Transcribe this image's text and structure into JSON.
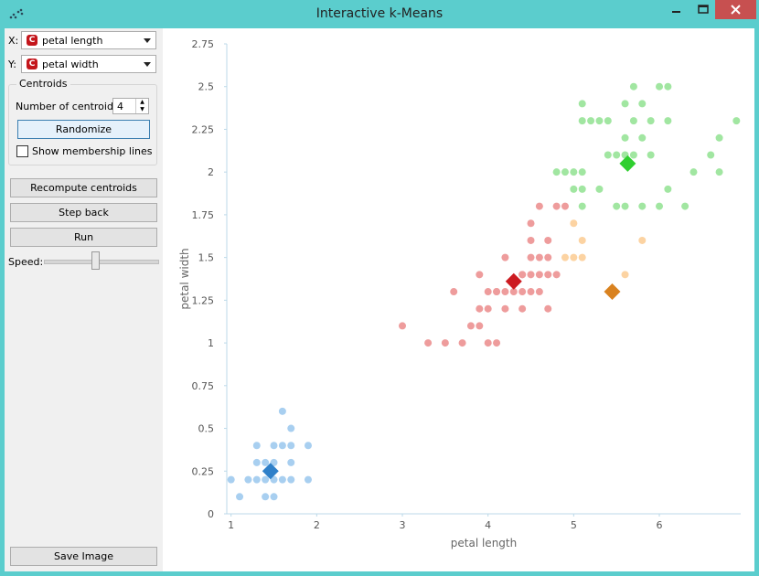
{
  "window": {
    "title": "Interactive k-Means"
  },
  "controls": {
    "x_label": "X:",
    "x_value": "petal length",
    "y_label": "Y:",
    "y_value": "petal width",
    "variable_badge": "C",
    "centroids_group_title": "Centroids",
    "num_centroids_label": "Number of centroids:",
    "num_centroids_value": "4",
    "randomize_label": "Randomize",
    "show_membership_label": "Show membership lines",
    "show_membership_checked": false,
    "recompute_label": "Recompute centroids",
    "step_back_label": "Step back",
    "run_label": "Run",
    "speed_label": "Speed:",
    "speed_fraction": 0.45,
    "save_image_label": "Save Image"
  },
  "colors": {
    "blue": "#a8cff0",
    "red": "#ee9c9c",
    "orange": "#fcd3a2",
    "green": "#a1e6a1",
    "blue_centroid": "#2f80c9",
    "red_centroid": "#cc1b21",
    "orange_centroid": "#d9821f",
    "green_centroid": "#2fcf2f",
    "close_button": "#c75050",
    "titlebar": "#5bcdcd"
  },
  "chart_data": {
    "type": "scatter",
    "xlabel": "petal length",
    "ylabel": "petal width",
    "xlim": [
      0.95,
      6.95
    ],
    "ylim": [
      0,
      2.75
    ],
    "x_ticks": [
      "1",
      "2",
      "3",
      "4",
      "5",
      "6"
    ],
    "y_ticks": [
      "0",
      "0.25",
      "0.5",
      "0.75",
      "1",
      "1.25",
      "1.5",
      "1.75",
      "2",
      "2.25",
      "2.5",
      "2.75"
    ],
    "clusters": [
      {
        "color": "blue",
        "centroid": [
          1.46,
          0.25
        ],
        "points": [
          [
            1.0,
            0.2
          ],
          [
            1.1,
            0.1
          ],
          [
            1.2,
            0.2
          ],
          [
            1.3,
            0.2
          ],
          [
            1.3,
            0.3
          ],
          [
            1.3,
            0.4
          ],
          [
            1.4,
            0.1
          ],
          [
            1.4,
            0.2
          ],
          [
            1.4,
            0.3
          ],
          [
            1.5,
            0.1
          ],
          [
            1.5,
            0.2
          ],
          [
            1.5,
            0.3
          ],
          [
            1.5,
            0.4
          ],
          [
            1.6,
            0.2
          ],
          [
            1.6,
            0.4
          ],
          [
            1.6,
            0.6
          ],
          [
            1.7,
            0.2
          ],
          [
            1.7,
            0.3
          ],
          [
            1.7,
            0.4
          ],
          [
            1.7,
            0.5
          ],
          [
            1.9,
            0.2
          ],
          [
            1.9,
            0.4
          ]
        ]
      },
      {
        "color": "red",
        "centroid": [
          4.3,
          1.36
        ],
        "points": [
          [
            3.0,
            1.1
          ],
          [
            3.3,
            1.0
          ],
          [
            3.5,
            1.0
          ],
          [
            3.6,
            1.3
          ],
          [
            3.7,
            1.0
          ],
          [
            3.8,
            1.1
          ],
          [
            3.9,
            1.1
          ],
          [
            3.9,
            1.2
          ],
          [
            3.9,
            1.4
          ],
          [
            4.0,
            1.0
          ],
          [
            4.0,
            1.2
          ],
          [
            4.0,
            1.3
          ],
          [
            4.1,
            1.0
          ],
          [
            4.1,
            1.3
          ],
          [
            4.2,
            1.2
          ],
          [
            4.2,
            1.3
          ],
          [
            4.2,
            1.5
          ],
          [
            4.3,
            1.3
          ],
          [
            4.4,
            1.2
          ],
          [
            4.4,
            1.3
          ],
          [
            4.4,
            1.4
          ],
          [
            4.5,
            1.3
          ],
          [
            4.5,
            1.5
          ],
          [
            4.5,
            1.7
          ],
          [
            4.6,
            1.3
          ],
          [
            4.6,
            1.4
          ],
          [
            4.6,
            1.5
          ],
          [
            4.7,
            1.2
          ],
          [
            4.7,
            1.4
          ],
          [
            4.7,
            1.5
          ],
          [
            4.7,
            1.6
          ],
          [
            4.8,
            1.4
          ],
          [
            4.8,
            1.8
          ],
          [
            4.9,
            1.8
          ],
          [
            4.5,
            1.6
          ],
          [
            4.6,
            1.8
          ],
          [
            4.5,
            1.4
          ],
          [
            4.4,
            1.4
          ],
          [
            4.1,
            1.3
          ]
        ]
      },
      {
        "color": "orange",
        "centroid": [
          5.45,
          1.3
        ],
        "points": [
          [
            5.0,
            1.7
          ],
          [
            4.9,
            1.5
          ],
          [
            5.0,
            1.5
          ],
          [
            5.1,
            1.5
          ],
          [
            5.1,
            1.6
          ],
          [
            5.6,
            1.4
          ],
          [
            5.8,
            1.6
          ]
        ]
      },
      {
        "color": "green",
        "centroid": [
          5.63,
          2.05
        ],
        "points": [
          [
            4.8,
            2.0
          ],
          [
            4.9,
            2.0
          ],
          [
            5.0,
            2.0
          ],
          [
            5.1,
            2.0
          ],
          [
            5.1,
            1.9
          ],
          [
            5.1,
            1.8
          ],
          [
            5.0,
            1.9
          ],
          [
            5.1,
            2.3
          ],
          [
            5.1,
            2.4
          ],
          [
            5.2,
            2.3
          ],
          [
            5.3,
            2.3
          ],
          [
            5.4,
            2.3
          ],
          [
            5.3,
            1.9
          ],
          [
            5.4,
            2.1
          ],
          [
            5.5,
            2.1
          ],
          [
            5.5,
            1.8
          ],
          [
            5.6,
            2.1
          ],
          [
            5.6,
            2.2
          ],
          [
            5.6,
            2.4
          ],
          [
            5.6,
            1.8
          ],
          [
            5.7,
            2.1
          ],
          [
            5.7,
            2.5
          ],
          [
            5.7,
            2.3
          ],
          [
            5.8,
            2.2
          ],
          [
            5.8,
            1.8
          ],
          [
            5.8,
            2.4
          ],
          [
            5.9,
            2.3
          ],
          [
            5.9,
            2.1
          ],
          [
            6.0,
            2.5
          ],
          [
            6.0,
            1.8
          ],
          [
            6.1,
            2.5
          ],
          [
            6.1,
            2.3
          ],
          [
            6.1,
            1.9
          ],
          [
            6.3,
            1.8
          ],
          [
            6.4,
            2.0
          ],
          [
            6.6,
            2.1
          ],
          [
            6.7,
            2.0
          ],
          [
            6.7,
            2.2
          ],
          [
            6.9,
            2.3
          ]
        ]
      }
    ]
  }
}
